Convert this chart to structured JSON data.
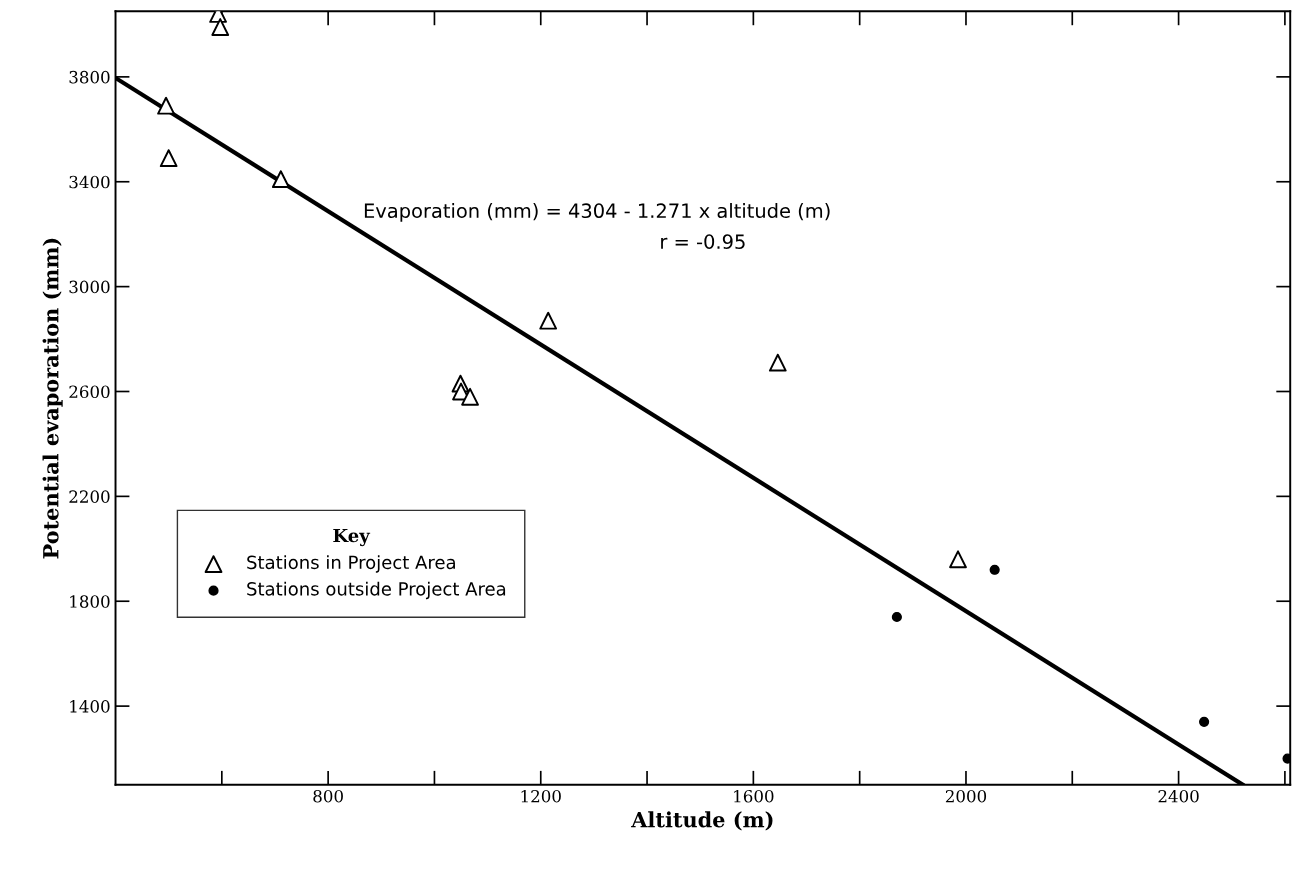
{
  "chart_data": {
    "type": "scatter",
    "xlabel": "Altitude (m)",
    "ylabel": "Potential evaporation (mm)",
    "legend_title": "Key",
    "legend": "lower left",
    "grid": false,
    "xlim": [
      400,
      2610
    ],
    "ylim": [
      1100,
      4050
    ],
    "xticks": [
      {
        "value": 600,
        "label": null
      },
      800,
      {
        "value": 1000,
        "label": null
      },
      1200,
      {
        "value": 1400,
        "label": null
      },
      1600,
      {
        "value": 1800,
        "label": null
      },
      2000,
      {
        "value": 2200,
        "label": null
      },
      2400,
      {
        "value": 2600,
        "label": null
      }
    ],
    "yticks": [
      1400,
      1800,
      2200,
      2600,
      3000,
      3400,
      3800
    ],
    "annotations": [
      "Evaporation (mm) = 4304 - 1.271 x altitude (m)",
      "r = -0.95"
    ],
    "series": [
      {
        "name": "Stations in Project Area",
        "marker": "triangle",
        "color": "#000000",
        "x": [
          495,
          500,
          593,
          597,
          711,
          1049,
          1050,
          1067,
          1214,
          1646,
          1985
        ],
        "values": [
          3690,
          3490,
          4040,
          3990,
          3410,
          2630,
          2600,
          2580,
          2870,
          2710,
          1960
        ]
      },
      {
        "name": "Stations outside Project Area",
        "marker": "circle",
        "color": "#000000",
        "x": [
          1870,
          2054,
          2448,
          2605
        ],
        "values": [
          1740,
          1920,
          1340,
          1200
        ]
      },
      {
        "type": "line",
        "marker": "none",
        "line_style": "solid",
        "color": "#000000",
        "x": [
          400,
          2520
        ],
        "values": [
          3796,
          1101
        ]
      }
    ]
  }
}
